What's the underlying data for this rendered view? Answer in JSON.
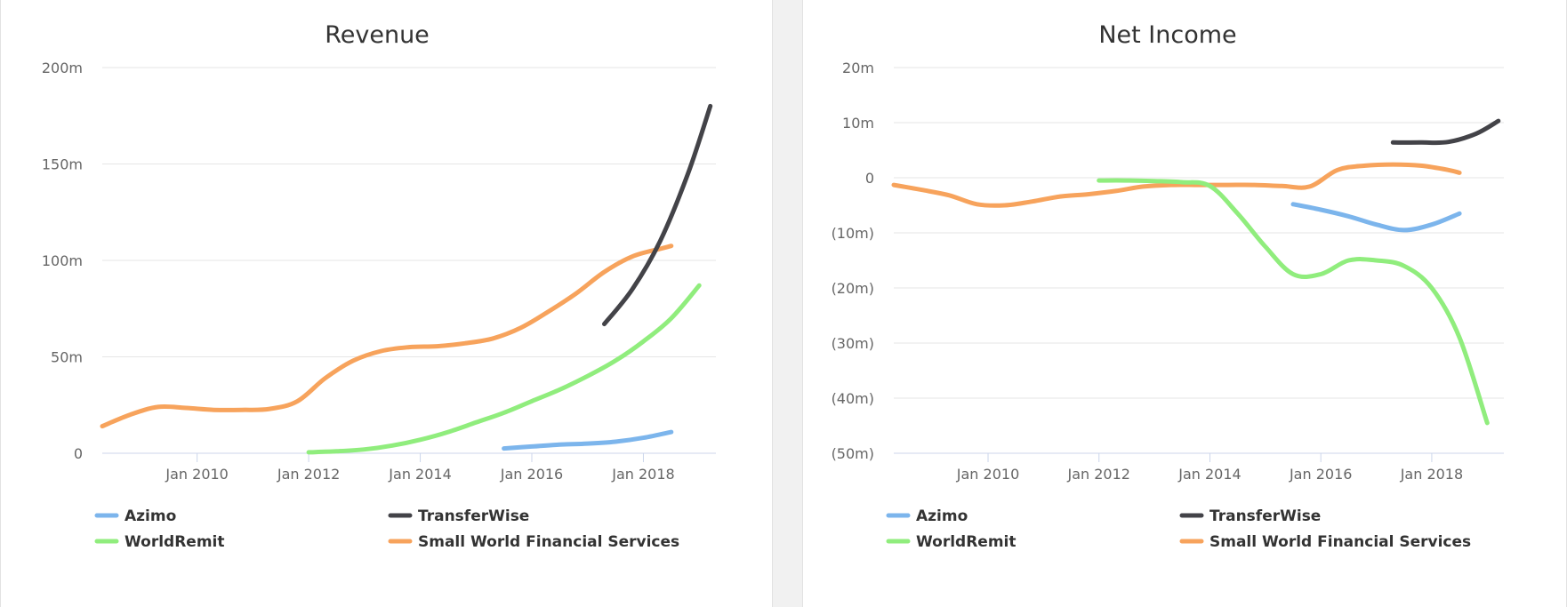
{
  "colors": {
    "Azimo": "#7cb5ec",
    "TransferWise": "#434348",
    "WorldRemit": "#90ed7d",
    "Small World Financial Services": "#f7a35c"
  },
  "chart_data": [
    {
      "type": "line",
      "title": "Revenue",
      "xlabel": "",
      "ylabel": "",
      "xlim": [
        2008.3,
        2019.3
      ],
      "ylim": [
        0,
        200
      ],
      "y_unit": "m",
      "grid": true,
      "legend_position": "bottom",
      "x_tick_values": [
        2010,
        2012,
        2014,
        2016,
        2018
      ],
      "x_tick_labels": [
        "Jan 2010",
        "Jan 2012",
        "Jan 2014",
        "Jan 2016",
        "Jan 2018"
      ],
      "y_tick_values": [
        0,
        50,
        100,
        150,
        200
      ],
      "y_tick_labels": [
        "0",
        "50m",
        "100m",
        "150m",
        "200m"
      ],
      "series": [
        {
          "name": "Azimo",
          "x": [
            2015.5,
            2016.0,
            2016.5,
            2017.0,
            2017.5,
            2018.0,
            2018.5
          ],
          "y": [
            2.5,
            3.5,
            4.5,
            5.0,
            6.0,
            8.0,
            11.0
          ]
        },
        {
          "name": "TransferWise",
          "x": [
            2017.3,
            2017.8,
            2018.3,
            2018.8,
            2019.2
          ],
          "y": [
            67,
            85,
            110,
            145,
            180
          ]
        },
        {
          "name": "WorldRemit",
          "x": [
            2012.0,
            2012.5,
            2013.0,
            2013.5,
            2014.0,
            2014.5,
            2015.0,
            2015.5,
            2016.0,
            2016.5,
            2017.0,
            2017.5,
            2018.0,
            2018.5,
            2019.0
          ],
          "y": [
            0.5,
            1.0,
            2.0,
            4.0,
            7.0,
            11.0,
            16.0,
            21.0,
            27.0,
            33.0,
            40.0,
            48.0,
            58.0,
            70.0,
            87.0
          ]
        },
        {
          "name": "Small World Financial Services",
          "x": [
            2008.3,
            2008.8,
            2009.3,
            2009.8,
            2010.3,
            2010.8,
            2011.3,
            2011.8,
            2012.3,
            2012.8,
            2013.3,
            2013.8,
            2014.3,
            2014.8,
            2015.3,
            2015.8,
            2016.3,
            2016.8,
            2017.3,
            2017.8,
            2018.3,
            2018.5
          ],
          "y": [
            14,
            20,
            24,
            23.5,
            22.5,
            22.5,
            23,
            27,
            39,
            48,
            53,
            55,
            55.5,
            57,
            59.5,
            65,
            73.5,
            83,
            94,
            102,
            106,
            107.5
          ]
        }
      ]
    },
    {
      "type": "line",
      "title": "Net Income",
      "xlabel": "",
      "ylabel": "",
      "xlim": [
        2008.3,
        2019.3
      ],
      "ylim": [
        -50,
        20
      ],
      "y_unit": "m",
      "grid": true,
      "legend_position": "bottom",
      "x_tick_values": [
        2010,
        2012,
        2014,
        2016,
        2018
      ],
      "x_tick_labels": [
        "Jan 2010",
        "Jan 2012",
        "Jan 2014",
        "Jan 2016",
        "Jan 2018"
      ],
      "y_tick_values": [
        20,
        10,
        0,
        -10,
        -20,
        -30,
        -40,
        -50
      ],
      "y_tick_labels": [
        "20m",
        "10m",
        "0",
        "(10m)",
        "(20m)",
        "(30m)",
        "(40m)",
        "(50m)"
      ],
      "series": [
        {
          "name": "Azimo",
          "x": [
            2015.5,
            2016.0,
            2016.5,
            2017.0,
            2017.5,
            2018.0,
            2018.5
          ],
          "y": [
            -4.8,
            -5.8,
            -7.0,
            -8.5,
            -9.5,
            -8.5,
            -6.5
          ]
        },
        {
          "name": "TransferWise",
          "x": [
            2017.3,
            2017.8,
            2018.3,
            2018.8,
            2019.2
          ],
          "y": [
            6.4,
            6.4,
            6.5,
            8.0,
            10.3
          ]
        },
        {
          "name": "WorldRemit",
          "x": [
            2012.0,
            2012.5,
            2013.0,
            2013.5,
            2014.0,
            2014.5,
            2015.0,
            2015.5,
            2016.0,
            2016.5,
            2017.0,
            2017.5,
            2018.0,
            2018.5,
            2019.0
          ],
          "y": [
            -0.5,
            -0.5,
            -0.6,
            -0.8,
            -1.5,
            -6.5,
            -12.5,
            -17.5,
            -17.5,
            -15.0,
            -15.0,
            -16.0,
            -20.0,
            -29.0,
            -44.5
          ]
        },
        {
          "name": "Small World Financial Services",
          "x": [
            2008.3,
            2008.8,
            2009.3,
            2009.8,
            2010.3,
            2010.8,
            2011.3,
            2011.8,
            2012.3,
            2012.8,
            2013.3,
            2013.8,
            2014.3,
            2014.8,
            2015.3,
            2015.8,
            2016.3,
            2016.8,
            2017.3,
            2017.8,
            2018.3,
            2018.5
          ],
          "y": [
            -1.3,
            -2.2,
            -3.2,
            -4.8,
            -5.0,
            -4.3,
            -3.4,
            -3.0,
            -2.4,
            -1.6,
            -1.3,
            -1.3,
            -1.3,
            -1.3,
            -1.5,
            -1.6,
            1.4,
            2.2,
            2.4,
            2.2,
            1.4,
            0.9
          ]
        }
      ]
    }
  ]
}
